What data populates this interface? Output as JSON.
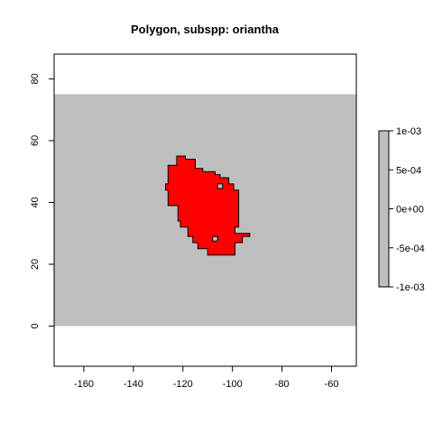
{
  "title": "Polygon, subspp: oriantha",
  "map": {
    "xlim": [
      -172,
      -50
    ],
    "ylim": [
      -13,
      88
    ],
    "extent_fill_color": "#bebebe",
    "extent": {
      "xmin": -172,
      "xmax": -50,
      "ymin": 0,
      "ymax": 75
    },
    "polygon_color": "#ff0000",
    "polygon_outline_color": "#000000",
    "polygon": [
      [
        -122.5,
        55
      ],
      [
        -119,
        55
      ],
      [
        -119,
        54
      ],
      [
        -115,
        54
      ],
      [
        -115,
        51
      ],
      [
        -112,
        51
      ],
      [
        -112,
        50
      ],
      [
        -107,
        50
      ],
      [
        -107,
        49
      ],
      [
        -105,
        49
      ],
      [
        -105,
        48
      ],
      [
        -101.5,
        48
      ],
      [
        -101.5,
        46
      ],
      [
        -99.5,
        46
      ],
      [
        -99.5,
        44
      ],
      [
        -97.5,
        44
      ],
      [
        -97.5,
        32
      ],
      [
        -99,
        32
      ],
      [
        -99,
        30
      ],
      [
        -93,
        30
      ],
      [
        -93,
        29
      ],
      [
        -96,
        29
      ],
      [
        -96,
        27
      ],
      [
        -99,
        27
      ],
      [
        -99,
        23
      ],
      [
        -110,
        23
      ],
      [
        -110,
        25
      ],
      [
        -114,
        25
      ],
      [
        -114,
        27
      ],
      [
        -116,
        27
      ],
      [
        -116,
        29
      ],
      [
        -118,
        29
      ],
      [
        -118,
        32
      ],
      [
        -121,
        32
      ],
      [
        -121,
        34
      ],
      [
        -122,
        34
      ],
      [
        -122,
        39
      ],
      [
        -126,
        39
      ],
      [
        -126,
        44
      ],
      [
        -127,
        44
      ],
      [
        -127,
        46
      ],
      [
        -126,
        46
      ],
      [
        -126,
        52
      ],
      [
        -122.5,
        52
      ]
    ],
    "holes": [
      [
        [
          -106,
          46
        ],
        [
          -104,
          46
        ],
        [
          -104,
          44.5
        ],
        [
          -106,
          44.5
        ]
      ],
      [
        [
          -108,
          29
        ],
        [
          -106,
          29
        ],
        [
          -106,
          27.5
        ],
        [
          -108,
          27.5
        ]
      ]
    ],
    "x_ticks": [
      -160,
      -140,
      -120,
      -100,
      -80,
      -60
    ],
    "y_ticks": [
      0,
      20,
      40,
      60,
      80
    ]
  },
  "legend": {
    "min": -0.001,
    "max": 0.001,
    "fill_color": "#bebebe",
    "ticks": [
      {
        "value": 0.001,
        "label": "1e-03"
      },
      {
        "value": 0.0005,
        "label": "5e-04"
      },
      {
        "value": 0,
        "label": "0e+00"
      },
      {
        "value": -0.0005,
        "label": "-5e-04"
      },
      {
        "value": -0.001,
        "label": "-1e-03"
      }
    ]
  }
}
